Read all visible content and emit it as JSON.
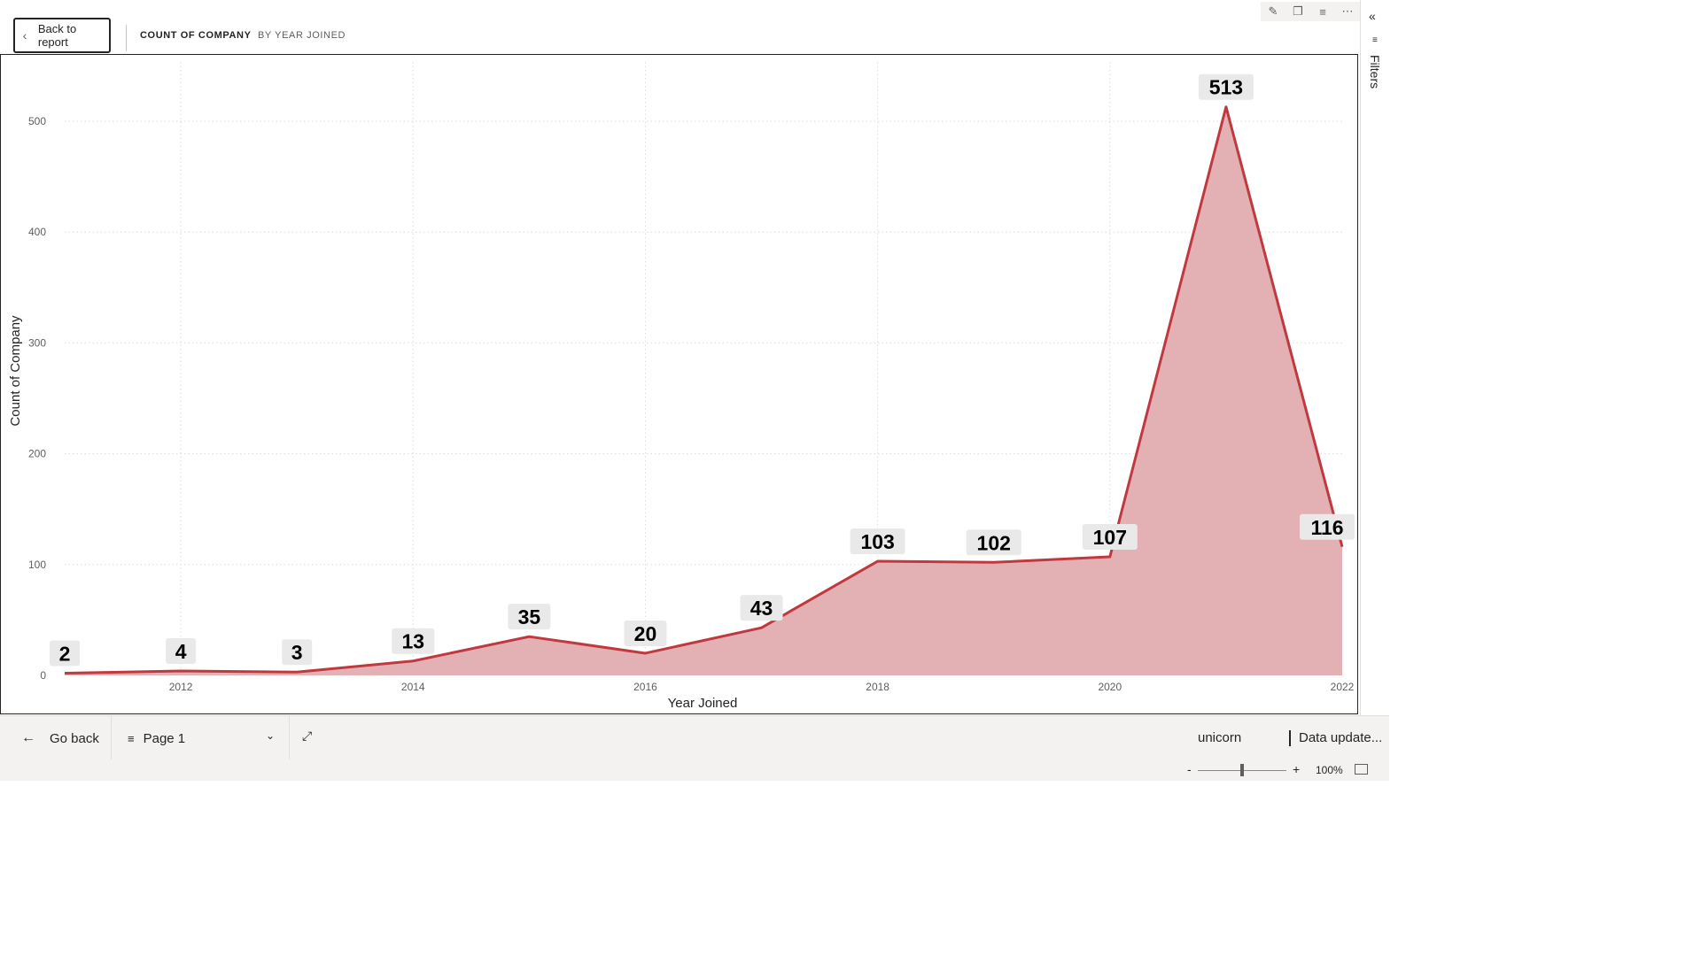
{
  "header": {
    "back_label": "Back to report",
    "title_main": "COUNT OF COMPANY",
    "title_sub": "BY YEAR JOINED"
  },
  "visual_icons": [
    "pin-icon",
    "copy-icon",
    "filter-icon",
    "more-icon"
  ],
  "right_pane": {
    "filters_label": "Filters"
  },
  "bottom": {
    "go_back_label": "Go back",
    "page_label": "Page 1",
    "workspace": "unicorn",
    "data_updated": "Data update..."
  },
  "status": {
    "zoom_minus": "-",
    "zoom_plus": "+",
    "zoom": "100%",
    "zoom_level": 0.5
  },
  "colors": {
    "line": "#c0393f",
    "area": "#e3b1b3",
    "label_bg": "#e9e9e9"
  },
  "chart_data": {
    "type": "area",
    "xlabel": "Year Joined",
    "ylabel": "Count of Company",
    "x": [
      2011,
      2012,
      2013,
      2014,
      2015,
      2016,
      2017,
      2018,
      2019,
      2020,
      2021,
      2022
    ],
    "values": [
      2,
      4,
      3,
      13,
      35,
      20,
      43,
      103,
      102,
      107,
      513,
      116
    ],
    "xticks": [
      2012,
      2014,
      2016,
      2018,
      2020,
      2022
    ],
    "yticks": [
      0,
      100,
      200,
      300,
      400,
      500
    ],
    "xlim": [
      2011,
      2022
    ],
    "ylim": [
      0,
      500
    ],
    "grid": true
  }
}
